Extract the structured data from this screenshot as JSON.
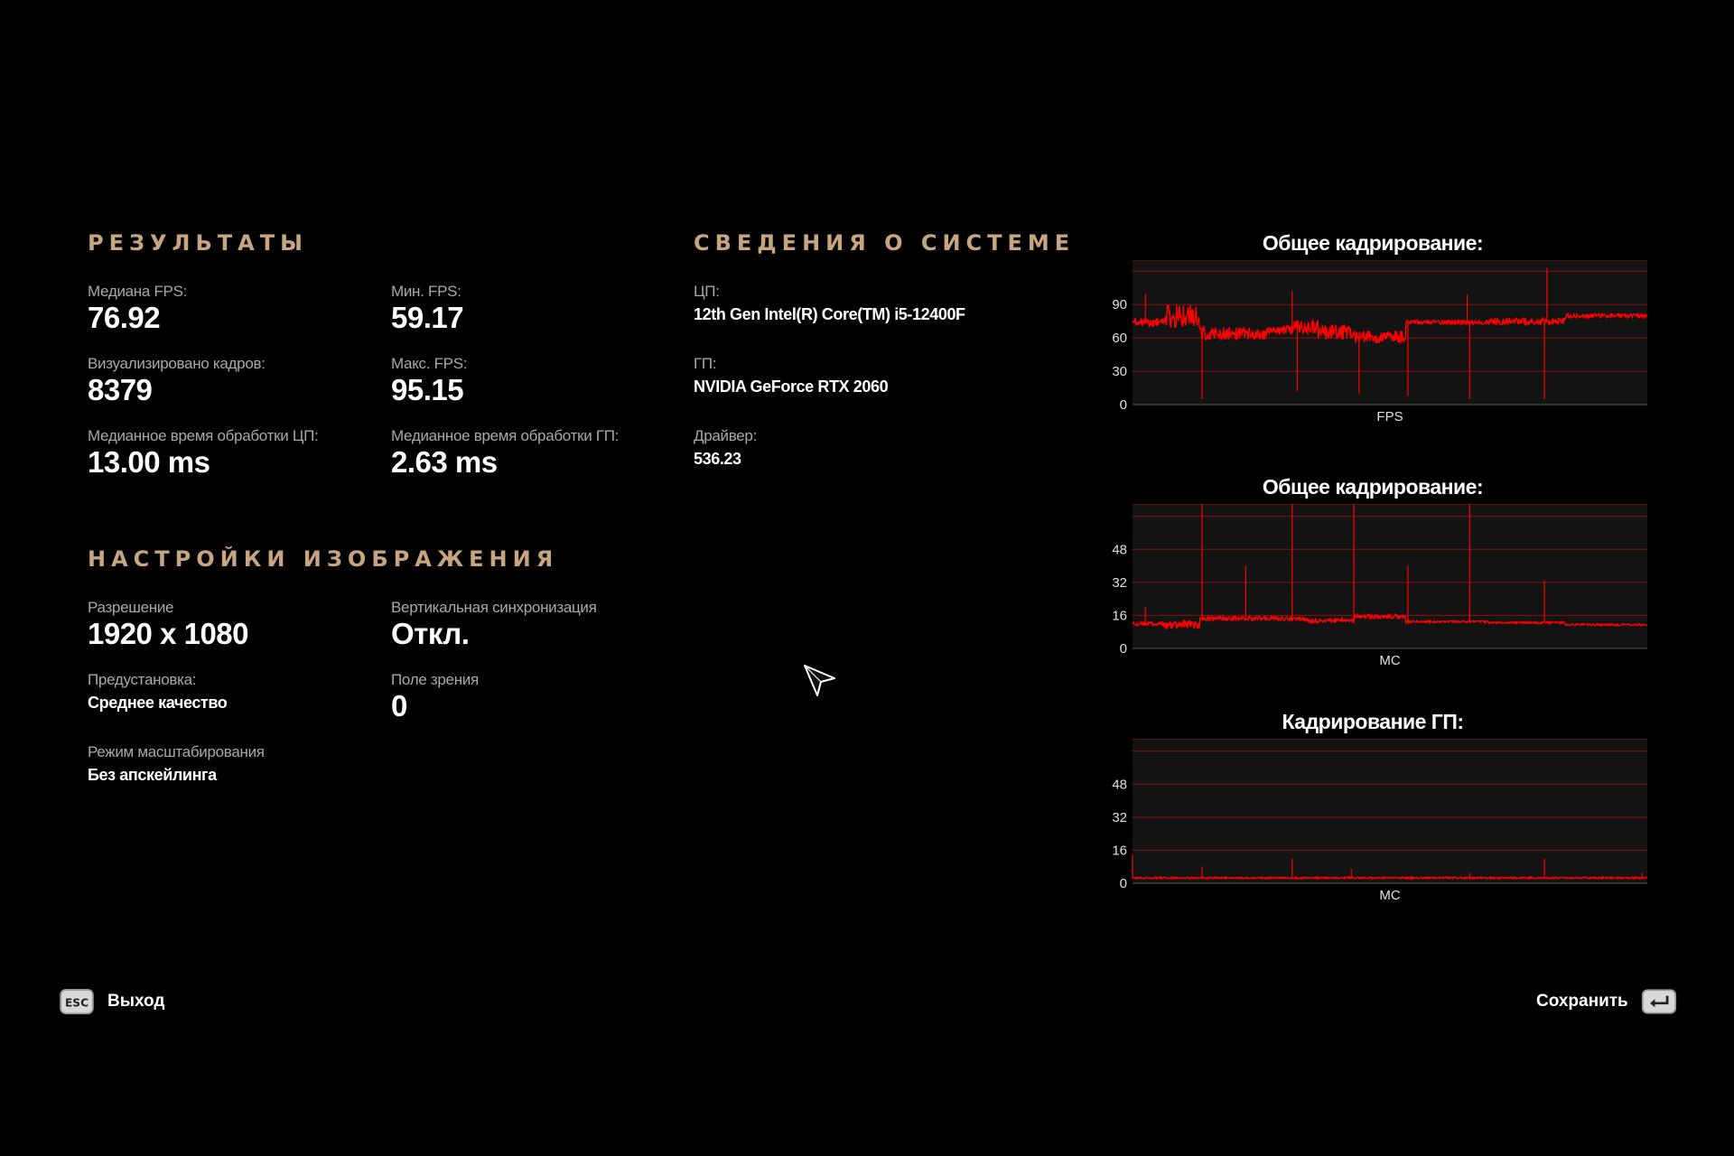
{
  "results": {
    "title": "РЕЗУЛЬТАТЫ",
    "median_fps": {
      "label": "Медиана FPS:",
      "value": "76.92"
    },
    "min_fps": {
      "label": "Мин. FPS:",
      "value": "59.17"
    },
    "frames_rendered": {
      "label": "Визуализировано кадров:",
      "value": "8379"
    },
    "max_fps": {
      "label": "Макс. FPS:",
      "value": "95.15"
    },
    "cpu_median_time": {
      "label": "Медианное время обработки ЦП:",
      "value": "13.00 ms"
    },
    "gpu_median_time": {
      "label": "Медианное время обработки ГП:",
      "value": "2.63 ms"
    }
  },
  "system": {
    "title": "СВЕДЕНИЯ О СИСТЕМЕ",
    "cpu": {
      "label": "ЦП:",
      "value": "12th Gen Intel(R) Core(TM) i5-12400F"
    },
    "gpu": {
      "label": "ГП:",
      "value": "NVIDIA GeForce RTX 2060"
    },
    "driver": {
      "label": "Драйвер:",
      "value": "536.23"
    }
  },
  "display": {
    "title": "НАСТРОЙКИ ИЗОБРАЖЕНИЯ",
    "resolution": {
      "label": "Разрешение",
      "value": "1920 x 1080"
    },
    "vsync": {
      "label": "Вертикальная синхронизация",
      "value": "Откл."
    },
    "preset": {
      "label": "Предустановка:",
      "value": "Среднее качество"
    },
    "fov": {
      "label": "Поле зрения",
      "value": "0"
    },
    "scaling": {
      "label": "Режим масштабирования",
      "value": "Без апскейлинга"
    }
  },
  "footer": {
    "exit_key": "ESC",
    "exit_label": "Выход",
    "save_label": "Сохранить",
    "save_key_icon": "enter-key-icon"
  },
  "colors": {
    "accent": "#c6a57f",
    "line": "#ff0000",
    "grid": "#8a1414",
    "plot_bg": "#131313"
  },
  "chart_data": [
    {
      "type": "line",
      "title": "Общее кадрирование:",
      "xlabel": "FPS",
      "ylabel": "",
      "yticks": [
        0,
        30,
        60,
        90
      ],
      "ylim": [
        0,
        130
      ],
      "grid": true,
      "series": [
        {
          "segments": [
            {
              "from": 0.0,
              "to": 0.06,
              "value": 74,
              "noise": 4
            },
            {
              "from": 0.06,
              "to": 0.13,
              "value": 79,
              "noise": 12
            },
            {
              "from": 0.13,
              "to": 0.26,
              "value": 64,
              "noise": 6
            },
            {
              "from": 0.26,
              "to": 0.31,
              "value": 67,
              "noise": 4
            },
            {
              "from": 0.31,
              "to": 0.36,
              "value": 70,
              "noise": 6
            },
            {
              "from": 0.36,
              "to": 0.43,
              "value": 65,
              "noise": 7
            },
            {
              "from": 0.43,
              "to": 0.53,
              "value": 61,
              "noise": 6
            },
            {
              "from": 0.53,
              "to": 0.69,
              "value": 74,
              "noise": 2
            },
            {
              "from": 0.69,
              "to": 0.84,
              "value": 75,
              "noise": 3
            },
            {
              "from": 0.84,
              "to": 1.0,
              "value": 80,
              "noise": 2
            }
          ],
          "spikes_up": [
            {
              "x": 0.025,
              "value": 100
            },
            {
              "x": 0.31,
              "value": 102
            },
            {
              "x": 0.65,
              "value": 99
            },
            {
              "x": 0.805,
              "value": 123
            }
          ],
          "spikes_down": [
            {
              "x": 0.135,
              "value": 5
            },
            {
              "x": 0.32,
              "value": 12
            },
            {
              "x": 0.44,
              "value": 10
            },
            {
              "x": 0.535,
              "value": 8
            },
            {
              "x": 0.655,
              "value": 5
            },
            {
              "x": 0.8,
              "value": 5
            }
          ]
        }
      ]
    },
    {
      "type": "line",
      "title": "Общее кадрирование:",
      "xlabel": "МС",
      "ylabel": "",
      "yticks": [
        0,
        16,
        32,
        48
      ],
      "ylim": [
        0,
        70
      ],
      "grid": true,
      "series": [
        {
          "segments": [
            {
              "from": 0.0,
              "to": 0.06,
              "value": 12,
              "noise": 1
            },
            {
              "from": 0.06,
              "to": 0.13,
              "value": 11.5,
              "noise": 2
            },
            {
              "from": 0.13,
              "to": 0.34,
              "value": 14.5,
              "noise": 1
            },
            {
              "from": 0.34,
              "to": 0.43,
              "value": 13.5,
              "noise": 1
            },
            {
              "from": 0.43,
              "to": 0.53,
              "value": 15.5,
              "noise": 1
            },
            {
              "from": 0.53,
              "to": 0.69,
              "value": 13,
              "noise": 0.5
            },
            {
              "from": 0.69,
              "to": 0.84,
              "value": 12.5,
              "noise": 0.5
            },
            {
              "from": 0.84,
              "to": 1.0,
              "value": 11.5,
              "noise": 0.5
            }
          ],
          "spikes_up": [
            {
              "x": 0.025,
              "value": 20
            },
            {
              "x": 0.135,
              "value": 70
            },
            {
              "x": 0.22,
              "value": 40
            },
            {
              "x": 0.31,
              "value": 70
            },
            {
              "x": 0.43,
              "value": 70
            },
            {
              "x": 0.535,
              "value": 40
            },
            {
              "x": 0.655,
              "value": 70
            },
            {
              "x": 0.8,
              "value": 33
            }
          ]
        }
      ]
    },
    {
      "type": "line",
      "title": "Кадрирование ГП:",
      "xlabel": "МС",
      "ylabel": "",
      "yticks": [
        0,
        16,
        32,
        48
      ],
      "ylim": [
        0,
        70
      ],
      "grid": true,
      "series": [
        {
          "segments": [
            {
              "from": 0.0,
              "to": 1.0,
              "value": 2.6,
              "noise": 0.4
            }
          ],
          "spikes_up": [
            {
              "x": 0.0,
              "value": 14
            },
            {
              "x": 0.135,
              "value": 8
            },
            {
              "x": 0.31,
              "value": 12
            },
            {
              "x": 0.425,
              "value": 7
            },
            {
              "x": 0.655,
              "value": 5
            },
            {
              "x": 0.8,
              "value": 12
            },
            {
              "x": 0.99,
              "value": 5
            }
          ]
        }
      ]
    }
  ]
}
